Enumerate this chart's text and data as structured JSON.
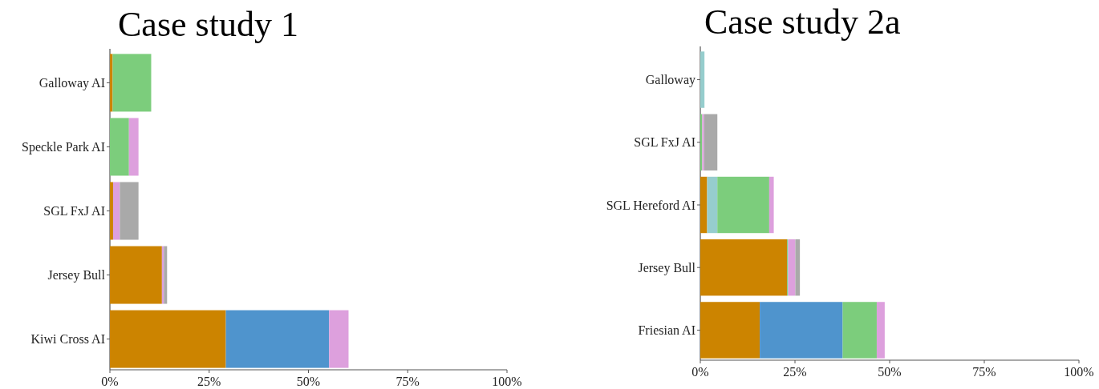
{
  "chart_data": [
    {
      "type": "bar",
      "title": "Case study 1",
      "orientation": "horizontal",
      "stacked": true,
      "categories": [
        "Galloway AI",
        "Speckle Park AI",
        "SGL FxJ AI",
        "Jersey Bull",
        "Kiwi Cross AI"
      ],
      "series": [
        {
          "color": "#cc8400",
          "values": [
            0.7,
            0,
            0.8,
            13.1,
            29.2
          ]
        },
        {
          "color": "#4f94cd",
          "values": [
            0,
            0,
            0,
            0,
            26.0
          ]
        },
        {
          "color": "#7ccd7c",
          "values": [
            9.7,
            4.8,
            0,
            0,
            0
          ]
        },
        {
          "color": "#dda0dd",
          "values": [
            0,
            2.4,
            1.7,
            0.5,
            4.9
          ]
        },
        {
          "color": "#a9a9a9",
          "values": [
            0,
            0,
            4.7,
            0.8,
            0
          ]
        }
      ],
      "xlim": [
        0,
        100
      ],
      "xticks": [
        {
          "value": 0,
          "label": "0%"
        },
        {
          "value": 25,
          "label": "25%"
        },
        {
          "value": 50,
          "label": "50%"
        },
        {
          "value": 75,
          "label": "75%"
        },
        {
          "value": 100,
          "label": "100%"
        }
      ]
    },
    {
      "type": "bar",
      "title": "Case study 2a",
      "orientation": "horizontal",
      "stacked": true,
      "categories": [
        "Galloway",
        "SGL FxJ AI",
        "SGL Hereford AI",
        "Jersey Bull",
        "Friesian AI"
      ],
      "series": [
        {
          "color": "#cc8400",
          "values": [
            0,
            0,
            1.8,
            22.9,
            15.7
          ]
        },
        {
          "color": "#4f94cd",
          "values": [
            0,
            0,
            0,
            0,
            21.9
          ]
        },
        {
          "color": "#96cdcd",
          "values": [
            1.1,
            0,
            2.7,
            0,
            0
          ]
        },
        {
          "color": "#7ccd7c",
          "values": [
            0,
            0.5,
            13.7,
            0.3,
            9.0
          ]
        },
        {
          "color": "#dda0dd",
          "values": [
            0,
            0.5,
            1.2,
            1.9,
            2.1
          ]
        },
        {
          "color": "#a9a9a9",
          "values": [
            0,
            3.5,
            0,
            1.2,
            0
          ]
        }
      ],
      "xlim": [
        0,
        100
      ],
      "xticks": [
        {
          "value": 0,
          "label": "0%"
        },
        {
          "value": 25,
          "label": "25%"
        },
        {
          "value": 50,
          "label": "50%"
        },
        {
          "value": 75,
          "label": "75%"
        },
        {
          "value": 100,
          "label": "100%"
        }
      ]
    }
  ]
}
